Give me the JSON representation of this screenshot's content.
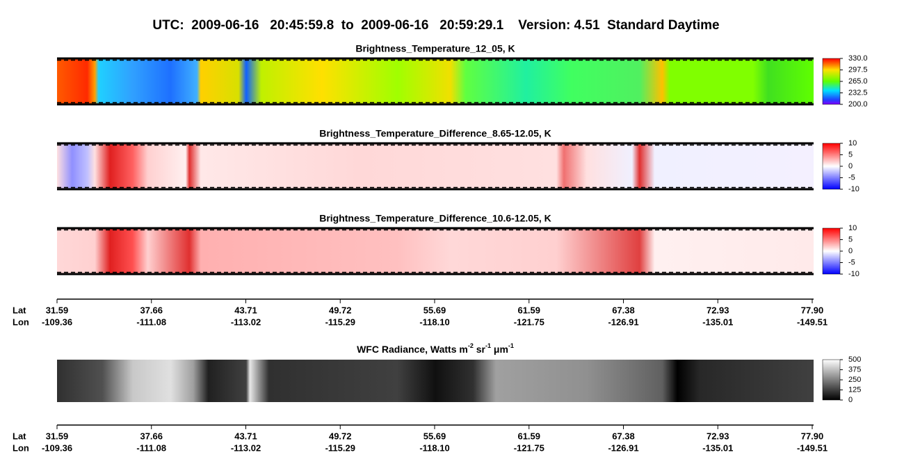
{
  "title": "UTC:  2009-06-16   20:45:59.8  to  2009-06-16   20:59:29.1    Version: 4.51  Standard Daytime",
  "panels": [
    {
      "title": "Brightness_Temperature_12_05, K",
      "colorbar": {
        "lim": [
          200,
          330
        ],
        "ticks": [
          {
            "value": 330,
            "label": "330.0"
          },
          {
            "value": 297.5,
            "label": "297.5"
          },
          {
            "value": 265,
            "label": "265.0"
          },
          {
            "value": 232.5,
            "label": "232.5"
          },
          {
            "value": 200,
            "label": "200.0"
          }
        ]
      }
    },
    {
      "title": "Brightness_Temperature_Difference_8.65-12.05, K",
      "colorbar": {
        "lim": [
          -10,
          10
        ],
        "ticks": [
          10,
          5,
          0,
          -5,
          -10
        ]
      }
    },
    {
      "title": "Brightness_Temperature_Difference_10.6-12.05, K",
      "colorbar": {
        "lim": [
          -10,
          10
        ],
        "ticks": [
          10,
          5,
          0,
          -5,
          -10
        ]
      }
    }
  ],
  "wfc": {
    "title_parts": [
      "WFC Radiance, Watts m",
      "-2",
      " sr",
      "-1",
      " μm",
      "-1"
    ],
    "colorbar": {
      "lim": [
        0,
        500
      ],
      "ticks": [
        500,
        375,
        250,
        125,
        0
      ]
    }
  },
  "axis_labels": {
    "lat": "Lat",
    "lon": "Lon"
  },
  "lat": [
    "31.59",
    "37.66",
    "43.71",
    "49.72",
    "55.69",
    "61.59",
    "67.38",
    "72.93",
    "77.90"
  ],
  "lon": [
    "-109.36",
    "-111.08",
    "-113.02",
    "-115.29",
    "-118.10",
    "-121.75",
    "-126.91",
    "-135.01",
    "-149.51"
  ]
}
